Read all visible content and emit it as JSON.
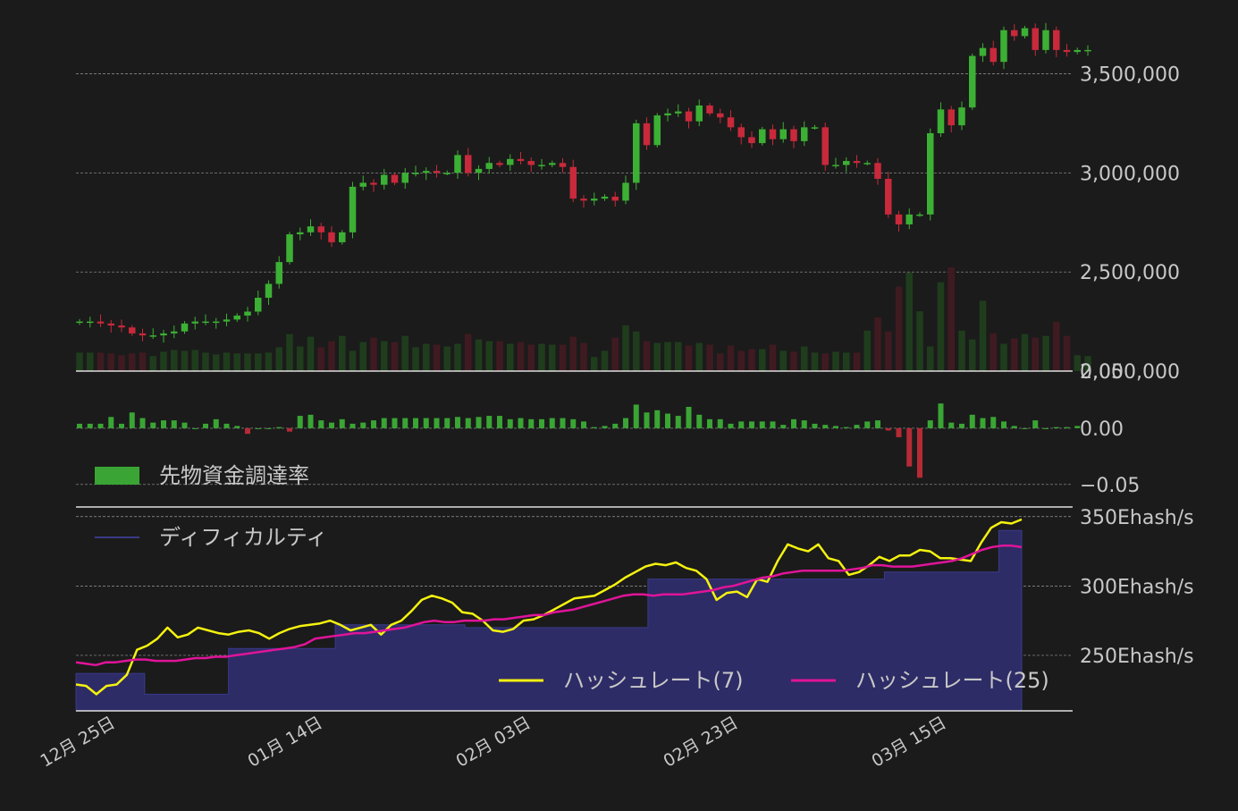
{
  "colors": {
    "background": "#1b1b1b",
    "up": "#3cb034",
    "down": "#c8293b",
    "volume_up": "#1f3d1c",
    "volume_down": "#3f1b21",
    "grid": "#9a9a9a",
    "axis": "#e0e0e0",
    "funding_up": "#3aa534",
    "funding_down": "#b62a36",
    "difficulty_fill": "#2e2c66",
    "difficulty_line": "#3a3a8a",
    "hashrate7": "#f5f20f",
    "hashrate25": "#e01499"
  },
  "chart_data": [
    {
      "type": "candlestick",
      "title": "",
      "ylabel": "",
      "ylim": [
        2000000,
        3800000
      ],
      "yticks": [
        2000000,
        2500000,
        3000000,
        3500000
      ],
      "ytick_labels": [
        "2,000,000",
        "2,500,000",
        "3,000,000",
        "3,500,000"
      ],
      "overlap_label": "0.05",
      "closes": [
        2250000,
        2250000,
        2240000,
        2230000,
        2220000,
        2190000,
        2180000,
        2180000,
        2190000,
        2200000,
        2240000,
        2250000,
        2250000,
        2250000,
        2260000,
        2280000,
        2300000,
        2370000,
        2440000,
        2550000,
        2690000,
        2700000,
        2730000,
        2700000,
        2650000,
        2700000,
        2930000,
        2950000,
        2940000,
        2990000,
        2950000,
        3000000,
        3000000,
        3010000,
        3000000,
        3000000,
        3090000,
        3000000,
        3020000,
        3050000,
        3040000,
        3070000,
        3060000,
        3040000,
        3040000,
        3050000,
        3030000,
        2870000,
        2860000,
        2870000,
        2880000,
        2860000,
        2950000,
        3250000,
        3140000,
        3290000,
        3300000,
        3310000,
        3260000,
        3340000,
        3300000,
        3280000,
        3230000,
        3180000,
        3150000,
        3220000,
        3170000,
        3220000,
        3160000,
        3230000,
        3230000,
        3040000,
        3040000,
        3060000,
        3050000,
        3050000,
        2970000,
        2790000,
        2740000,
        2790000,
        2790000,
        3200000,
        3320000,
        3240000,
        3330000,
        3590000,
        3630000,
        3560000,
        3720000,
        3690000,
        3730000,
        3620000,
        3720000,
        3620000,
        3610000,
        3620000,
        3620000
      ],
      "volumes": [
        210000,
        210000,
        210000,
        200000,
        180000,
        200000,
        210000,
        170000,
        220000,
        240000,
        230000,
        240000,
        210000,
        190000,
        210000,
        200000,
        200000,
        200000,
        210000,
        270000,
        420000,
        280000,
        390000,
        270000,
        340000,
        400000,
        230000,
        330000,
        380000,
        340000,
        330000,
        400000,
        270000,
        310000,
        300000,
        280000,
        310000,
        420000,
        360000,
        340000,
        340000,
        310000,
        330000,
        300000,
        310000,
        300000,
        300000,
        390000,
        320000,
        160000,
        230000,
        380000,
        520000,
        450000,
        340000,
        320000,
        330000,
        330000,
        290000,
        320000,
        300000,
        200000,
        290000,
        230000,
        250000,
        250000,
        300000,
        230000,
        220000,
        280000,
        210000,
        200000,
        220000,
        210000,
        210000,
        460000,
        610000,
        450000,
        960000,
        1120000,
        680000,
        280000,
        1010000,
        1180000,
        460000,
        360000,
        800000,
        430000,
        310000,
        370000,
        420000,
        380000,
        400000,
        560000,
        400000,
        180000,
        170000
      ]
    },
    {
      "type": "bar",
      "series_name": "先物資金調達率",
      "ylim": [
        -0.07,
        0.05
      ],
      "yticks": [
        0.0,
        -0.05
      ],
      "ytick_labels": [
        "0.00",
        "−0.05"
      ],
      "values": [
        0.004,
        0.004,
        0.004,
        0.01,
        0.004,
        0.014,
        0.009,
        0.005,
        0.007,
        0.007,
        0.005,
        0.0,
        0.004,
        0.008,
        0.004,
        0.002,
        -0.005,
        0.0,
        0.0,
        0.001,
        -0.003,
        0.011,
        0.012,
        0.007,
        0.005,
        0.008,
        0.004,
        0.005,
        0.007,
        0.009,
        0.009,
        0.009,
        0.009,
        0.009,
        0.009,
        0.009,
        0.01,
        0.009,
        0.01,
        0.011,
        0.011,
        0.008,
        0.009,
        0.008,
        0.008,
        0.009,
        0.009,
        0.008,
        0.006,
        0.001,
        0.002,
        0.004,
        0.009,
        0.021,
        0.014,
        0.016,
        0.013,
        0.011,
        0.019,
        0.012,
        0.008,
        0.008,
        0.004,
        0.006,
        0.006,
        0.006,
        0.006,
        0.003,
        0.008,
        0.007,
        0.004,
        0.003,
        0.002,
        0.001,
        0.003,
        0.006,
        0.007,
        -0.002,
        -0.008,
        -0.034,
        -0.044,
        0.007,
        0.022,
        0.005,
        0.004,
        0.012,
        0.009,
        0.01,
        0.006,
        0.002,
        0.0,
        0.007,
        0.0,
        0.001,
        0.001,
        0.002
      ]
    },
    {
      "type": "line",
      "ylim": [
        210,
        355
      ],
      "yticks": [
        350,
        300,
        250
      ],
      "ytick_labels": [
        "350Ehash/s",
        "300Ehash/s",
        "250Ehash/s"
      ],
      "series": [
        {
          "name": "ディフィカルティ",
          "type": "area",
          "values": [
            237,
            237,
            237,
            237,
            237,
            237,
            237,
            237,
            237,
            222,
            222,
            222,
            222,
            222,
            222,
            222,
            222,
            222,
            222,
            222,
            255,
            255,
            255,
            255,
            255,
            255,
            255,
            255,
            255,
            255,
            255,
            255,
            255,
            255,
            272,
            272,
            272,
            272,
            272,
            272,
            272,
            272,
            272,
            272,
            272,
            272,
            272,
            272,
            272,
            272,
            272,
            270,
            270,
            270,
            270,
            270,
            270,
            270,
            270,
            270,
            270,
            270,
            270,
            270,
            270,
            270,
            270,
            270,
            270,
            270,
            270,
            270,
            270,
            270,
            270,
            305,
            305,
            305,
            305,
            305,
            305,
            305,
            305,
            305,
            305,
            305,
            305,
            305,
            305,
            305,
            305,
            305,
            305,
            305,
            305,
            305,
            305,
            305,
            305,
            305,
            305,
            305,
            305,
            305,
            305,
            305,
            310,
            310,
            310,
            310,
            310,
            310,
            310,
            310,
            310,
            310,
            310,
            310,
            310,
            310,
            310,
            340,
            340,
            340,
            340
          ]
        },
        {
          "name": "ハッシュレート(7)",
          "values": [
            229,
            228,
            222,
            228,
            229,
            236,
            254,
            257,
            262,
            270,
            263,
            265,
            270,
            268,
            266,
            265,
            267,
            268,
            266,
            262,
            266,
            269,
            271,
            272,
            273,
            275,
            272,
            268,
            270,
            272,
            265,
            272,
            275,
            282,
            290,
            293,
            291,
            288,
            281,
            280,
            275,
            268,
            267,
            269,
            275,
            276,
            279,
            283,
            287,
            291,
            292,
            293,
            297,
            301,
            306,
            310,
            314,
            316,
            315,
            317,
            313,
            311,
            305,
            290,
            295,
            296,
            292,
            305,
            303,
            318,
            330,
            327,
            325,
            330,
            320,
            318,
            308,
            310,
            315,
            321,
            318,
            322,
            322,
            326,
            325,
            320,
            320,
            319,
            318,
            331,
            342,
            346,
            345,
            348
          ]
        },
        {
          "name": "ハッシュレート(25)",
          "values": [
            245,
            244,
            243,
            245,
            245,
            246,
            247,
            247,
            246,
            246,
            246,
            247,
            248,
            248,
            249,
            249,
            250,
            251,
            252,
            253,
            254,
            255,
            256,
            258,
            262,
            263,
            264,
            265,
            266,
            266,
            267,
            268,
            269,
            270,
            272,
            274,
            275,
            274,
            274,
            275,
            275,
            275,
            276,
            276,
            277,
            278,
            279,
            279,
            281,
            282,
            283,
            285,
            287,
            289,
            291,
            293,
            294,
            294,
            293,
            294,
            294,
            294,
            295,
            296,
            297,
            299,
            300,
            302,
            304,
            306,
            307,
            309,
            310,
            311,
            311,
            311,
            311,
            311,
            312,
            313,
            315,
            315,
            314,
            314,
            314,
            315,
            316,
            317,
            318,
            320,
            323,
            326,
            328,
            329,
            329,
            328
          ]
        }
      ]
    }
  ],
  "x_axis": {
    "tick_labels": [
      "12月 25日",
      "01月 14日",
      "02月 03日",
      "02月 23日",
      "03月 15日"
    ]
  },
  "legends": {
    "funding": "先物資金調達率",
    "difficulty": "ディフィカルティ",
    "hash7": "ハッシュレート(7)",
    "hash25": "ハッシュレート(25)"
  }
}
